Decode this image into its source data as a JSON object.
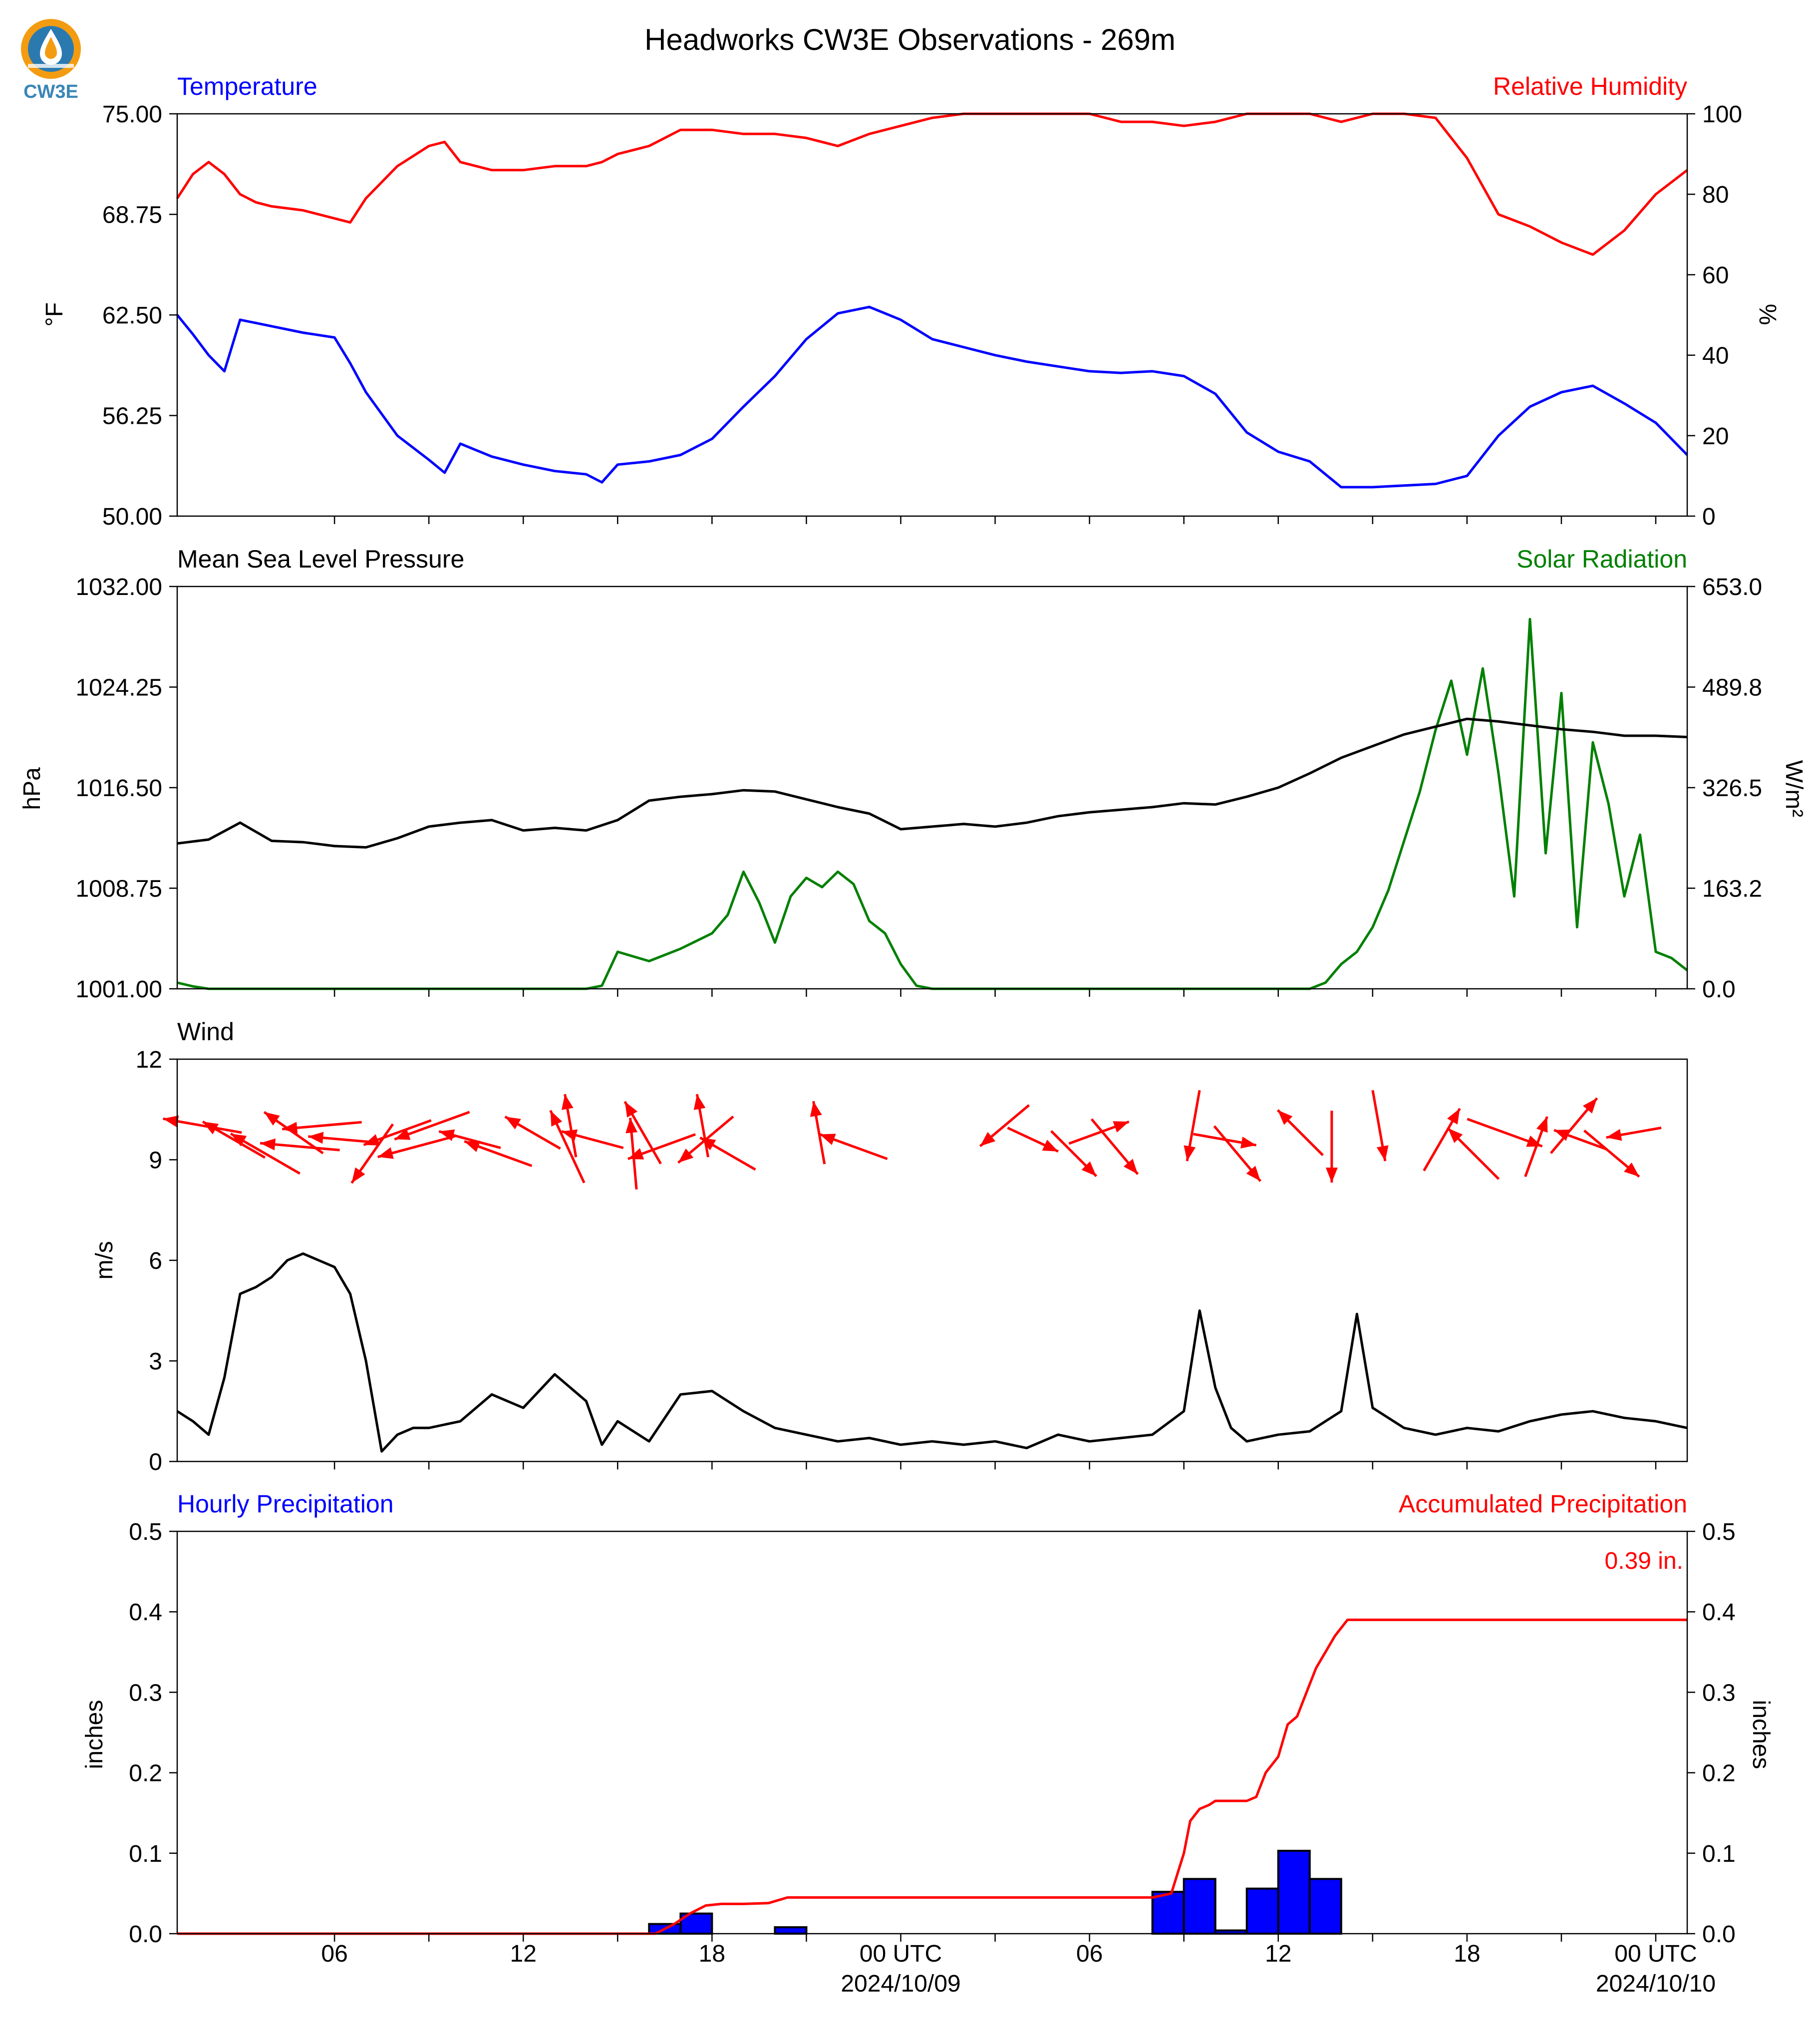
{
  "title": "Headworks CW3E Observations - 269m",
  "logo": {
    "text": "CW3E",
    "icon": "water-drop-sun-logo",
    "color": "#3a86b8"
  },
  "colors": {
    "temperature": "#0000ff",
    "humidity": "#ff0000",
    "pressure": "#000000",
    "solar": "#008000",
    "wind": "#000000",
    "arrows": "#ff0000",
    "hourly": "#0000ff",
    "accum": "#ff0000"
  },
  "x_axis": {
    "ticks": [
      {
        "h": 6,
        "label": "06"
      },
      {
        "h": 12,
        "label": "12"
      },
      {
        "h": 18,
        "label": "18"
      },
      {
        "h": 24,
        "label": "00 UTC",
        "date": "2024/10/09"
      },
      {
        "h": 30,
        "label": "06"
      },
      {
        "h": 36,
        "label": "12"
      },
      {
        "h": 42,
        "label": "18"
      },
      {
        "h": 48,
        "label": "00 UTC",
        "date": "2024/10/10"
      }
    ],
    "minor_ticks": [
      9,
      15,
      21,
      27,
      33,
      39,
      45
    ]
  },
  "panel1": {
    "left_title": "Temperature",
    "right_title": "Relative Humidity",
    "left_label": "°F",
    "right_label": "%",
    "left_ticks": [
      "50.00",
      "56.25",
      "62.50",
      "68.75",
      "75.00"
    ],
    "right_ticks": [
      "0",
      "20",
      "40",
      "60",
      "80",
      "100"
    ]
  },
  "panel2": {
    "left_title": "Mean Sea Level Pressure",
    "right_title": "Solar Radiation",
    "left_label": "hPa",
    "right_label": "W/m²",
    "left_ticks": [
      "1001.00",
      "1008.75",
      "1016.50",
      "1024.25",
      "1032.00"
    ],
    "right_ticks": [
      "0.0",
      "163.2",
      "326.5",
      "489.8",
      "653.0"
    ]
  },
  "panel3": {
    "left_title": "Wind",
    "left_label": "m/s",
    "left_ticks": [
      "0",
      "3",
      "6",
      "9",
      "12"
    ]
  },
  "panel4": {
    "left_title": "Hourly Precipitation",
    "right_title": "Accumulated Precipitation",
    "left_label": "inches",
    "right_label": "inches",
    "total_label": "0.39 in.",
    "left_ticks": [
      "0.0",
      "0.1",
      "0.2",
      "0.3",
      "0.4",
      "0.5"
    ],
    "right_ticks": [
      "0.0",
      "0.1",
      "0.2",
      "0.3",
      "0.4",
      "0.5"
    ]
  },
  "chart_data": {
    "type": "line",
    "x_unit": "hours since 2024/10/08 00 UTC",
    "x_range": [
      1,
      49
    ],
    "temperature_f": {
      "ylim": [
        50,
        75
      ],
      "x": [
        1,
        1.5,
        2,
        2.5,
        3,
        3.5,
        4,
        5,
        6,
        6.5,
        7,
        8,
        9,
        9.5,
        10,
        11,
        12,
        13,
        14,
        14.5,
        15,
        16,
        17,
        18,
        19,
        20,
        21,
        22,
        23,
        24,
        25,
        26,
        27,
        28,
        29,
        30,
        31,
        32,
        33,
        34,
        35,
        36,
        37,
        38,
        39,
        40,
        41,
        42,
        43,
        44,
        45,
        46,
        47,
        48,
        49
      ],
      "y": [
        62.5,
        61.3,
        60.0,
        59.0,
        62.2,
        62.0,
        61.8,
        61.4,
        61.1,
        59.5,
        57.7,
        55.0,
        53.5,
        52.7,
        54.5,
        53.7,
        53.2,
        52.8,
        52.6,
        52.1,
        53.2,
        53.4,
        53.8,
        54.8,
        56.8,
        58.7,
        61.0,
        62.6,
        63.0,
        62.2,
        61.0,
        60.5,
        60.0,
        59.6,
        59.3,
        59.0,
        58.9,
        59.0,
        58.7,
        57.6,
        55.2,
        54.0,
        53.4,
        51.8,
        51.8,
        51.9,
        52.0,
        52.5,
        55.0,
        56.8,
        57.7,
        58.1,
        57.0,
        55.8,
        53.8
      ]
    },
    "relative_humidity_pct": {
      "ylim": [
        0,
        100
      ],
      "x": [
        1,
        1.5,
        2,
        2.5,
        3,
        3.5,
        4,
        5,
        6,
        6.5,
        7,
        8,
        9,
        9.5,
        10,
        11,
        12,
        13,
        14,
        14.5,
        15,
        16,
        17,
        18,
        19,
        20,
        21,
        22,
        23,
        24,
        25,
        26,
        27,
        28,
        29,
        30,
        31,
        32,
        33,
        34,
        35,
        36,
        37,
        38,
        39,
        40,
        41,
        42,
        43,
        44,
        45,
        46,
        47,
        48,
        49
      ],
      "y": [
        79,
        85,
        88,
        85,
        80,
        78,
        77,
        76,
        74,
        73,
        79,
        87,
        92,
        93,
        88,
        86,
        86,
        87,
        87,
        88,
        90,
        92,
        96,
        96,
        95,
        95,
        94,
        92,
        95,
        97,
        99,
        100,
        100,
        100,
        100,
        100,
        98,
        98,
        97,
        98,
        100,
        100,
        100,
        98,
        100,
        100,
        99,
        89,
        75,
        72,
        68,
        65,
        71,
        80,
        86
      ]
    },
    "pressure_hpa": {
      "ylim": [
        1001,
        1032
      ],
      "x": [
        1,
        2,
        3,
        4,
        5,
        6,
        7,
        8,
        9,
        10,
        11,
        12,
        13,
        14,
        15,
        16,
        17,
        18,
        19,
        20,
        21,
        22,
        23,
        24,
        25,
        26,
        27,
        28,
        29,
        30,
        31,
        32,
        33,
        34,
        35,
        36,
        37,
        38,
        39,
        40,
        41,
        42,
        43,
        44,
        45,
        46,
        47,
        48,
        49
      ],
      "y": [
        1012.2,
        1012.5,
        1013.8,
        1012.4,
        1012.3,
        1012.0,
        1011.9,
        1012.6,
        1013.5,
        1013.8,
        1014.0,
        1013.2,
        1013.4,
        1013.2,
        1014.0,
        1015.5,
        1015.8,
        1016.0,
        1016.3,
        1016.2,
        1015.6,
        1015.0,
        1014.5,
        1013.3,
        1013.5,
        1013.7,
        1013.5,
        1013.8,
        1014.3,
        1014.6,
        1014.8,
        1015.0,
        1015.3,
        1015.2,
        1015.8,
        1016.5,
        1017.6,
        1018.8,
        1019.7,
        1020.6,
        1021.2,
        1021.8,
        1021.6,
        1021.3,
        1021.0,
        1020.8,
        1020.5,
        1020.5,
        1020.4
      ]
    },
    "solar_radiation_wm2": {
      "ylim": [
        0,
        653
      ],
      "x": [
        1,
        1.5,
        2,
        13,
        14,
        14.5,
        15,
        16,
        17,
        18,
        18.5,
        19,
        19.5,
        20,
        20.5,
        21,
        21.5,
        22,
        22.5,
        23,
        23.5,
        24,
        24.5,
        25,
        26,
        37,
        37.5,
        38,
        38.5,
        39,
        39.5,
        40,
        40.5,
        41,
        41.5,
        42,
        42.5,
        43,
        43.5,
        44,
        44.5,
        45,
        45.5,
        46,
        46.5,
        47,
        47.5,
        48,
        48.5,
        49
      ],
      "y": [
        10,
        4,
        0,
        0,
        0,
        5,
        60,
        45,
        65,
        90,
        120,
        190,
        140,
        75,
        150,
        180,
        165,
        190,
        170,
        110,
        90,
        40,
        5,
        0,
        0,
        0,
        10,
        40,
        60,
        100,
        160,
        240,
        320,
        420,
        500,
        380,
        520,
        350,
        150,
        600,
        220,
        480,
        100,
        400,
        300,
        150,
        250,
        60,
        50,
        30
      ]
    },
    "wind_speed_ms": {
      "ylim": [
        0,
        12
      ],
      "x": [
        1,
        1.5,
        2,
        2.5,
        3,
        3.5,
        4,
        4.5,
        5,
        5.5,
        6,
        6.5,
        7,
        7.5,
        8,
        8.5,
        9,
        10,
        11,
        12,
        13,
        14,
        14.5,
        15,
        16,
        17,
        18,
        19,
        20,
        21,
        22,
        23,
        24,
        25,
        26,
        27,
        28,
        29,
        30,
        31,
        32,
        33,
        33.5,
        34,
        34.5,
        35,
        36,
        37,
        38,
        38.5,
        39,
        40,
        41,
        42,
        43,
        44,
        45,
        46,
        47,
        48,
        49
      ],
      "y": [
        1.5,
        1.2,
        0.8,
        2.5,
        5.0,
        5.2,
        5.5,
        6.0,
        6.2,
        6.0,
        5.8,
        5.0,
        3.0,
        0.3,
        0.8,
        1.0,
        1.0,
        1.2,
        2.0,
        1.6,
        2.6,
        1.8,
        0.5,
        1.2,
        0.6,
        2.0,
        2.1,
        1.5,
        1.0,
        0.8,
        0.6,
        0.7,
        0.5,
        0.6,
        0.5,
        0.6,
        0.4,
        0.8,
        0.6,
        0.7,
        0.8,
        1.5,
        4.5,
        2.2,
        1.0,
        0.6,
        0.8,
        0.9,
        1.5,
        4.4,
        1.6,
        1.0,
        0.8,
        1.0,
        0.9,
        1.2,
        1.4,
        1.5,
        1.3,
        1.2,
        1.0
      ]
    },
    "wind_direction_arrows": {
      "note": "arrows point in the direction the wind blows toward; angle in degrees clockwise from east",
      "x": [
        1.8,
        2.8,
        3.8,
        4.7,
        4.9,
        5.6,
        6.3,
        7.2,
        8.0,
        8.6,
        9.1,
        10.3,
        11.2,
        12.3,
        13.4,
        13.5,
        14.2,
        15.5,
        15.8,
        16.4,
        17.7,
        17.8,
        18.5,
        21.4,
        22.5,
        27.3,
        28.2,
        29.5,
        30.3,
        30.8,
        33.3,
        34.3,
        34.7,
        36.7,
        37.7,
        39.2,
        41.2,
        42.2,
        43.2,
        44.2,
        45.4,
        45.6,
        46.6,
        47.3
      ],
      "angle": [
        -170,
        -150,
        -150,
        -145,
        -175,
        175,
        -175,
        125,
        160,
        165,
        160,
        -165,
        -160,
        -150,
        -115,
        -100,
        -165,
        -95,
        -120,
        160,
        -100,
        140,
        -150,
        -100,
        -160,
        140,
        25,
        45,
        -20,
        50,
        100,
        10,
        50,
        -135,
        90,
        80,
        -60,
        -135,
        20,
        -70,
        -50,
        -160,
        40,
        170
      ],
      "length": [
        1.0,
        0.9,
        1.0,
        0.9,
        1.0,
        1.0,
        0.9,
        0.9,
        0.9,
        1.0,
        1.0,
        0.8,
        0.9,
        0.8,
        1.0,
        0.8,
        0.8,
        0.9,
        0.9,
        0.9,
        0.8,
        0.9,
        0.8,
        0.8,
        0.9,
        0.8,
        0.7,
        0.8,
        0.8,
        0.9,
        0.9,
        0.8,
        0.9,
        0.8,
        0.9,
        0.9,
        0.9,
        0.9,
        1.0,
        0.8,
        0.9,
        0.7,
        0.9,
        0.7
      ]
    },
    "hourly_precipitation_in": {
      "ylim": [
        0,
        0.5
      ],
      "bins": [
        {
          "x0": 16.0,
          "x1": 17.0,
          "value": 0.012
        },
        {
          "x0": 17.0,
          "x1": 18.0,
          "value": 0.025
        },
        {
          "x0": 20.0,
          "x1": 21.0,
          "value": 0.008
        },
        {
          "x0": 32.0,
          "x1": 33.0,
          "value": 0.052
        },
        {
          "x0": 33.0,
          "x1": 34.0,
          "value": 0.068
        },
        {
          "x0": 34.0,
          "x1": 35.0,
          "value": 0.004
        },
        {
          "x0": 35.0,
          "x1": 36.0,
          "value": 0.056
        },
        {
          "x0": 36.0,
          "x1": 37.0,
          "value": 0.103
        },
        {
          "x0": 37.0,
          "x1": 38.0,
          "value": 0.068
        }
      ]
    },
    "accumulated_precipitation_in": {
      "ylim": [
        0,
        0.5
      ],
      "x": [
        1,
        16.2,
        16.8,
        17.3,
        17.8,
        18.3,
        19.0,
        19.8,
        20.4,
        21.0,
        32.0,
        32.6,
        33.0,
        33.2,
        33.5,
        33.8,
        34.0,
        35.0,
        35.3,
        35.6,
        36.0,
        36.3,
        36.6,
        36.9,
        37.2,
        37.5,
        37.8,
        38.2,
        49
      ],
      "y": [
        0,
        0,
        0.012,
        0.025,
        0.035,
        0.037,
        0.037,
        0.038,
        0.045,
        0.045,
        0.045,
        0.05,
        0.1,
        0.14,
        0.155,
        0.16,
        0.165,
        0.165,
        0.17,
        0.2,
        0.22,
        0.26,
        0.27,
        0.3,
        0.33,
        0.35,
        0.37,
        0.39,
        0.39
      ]
    }
  }
}
